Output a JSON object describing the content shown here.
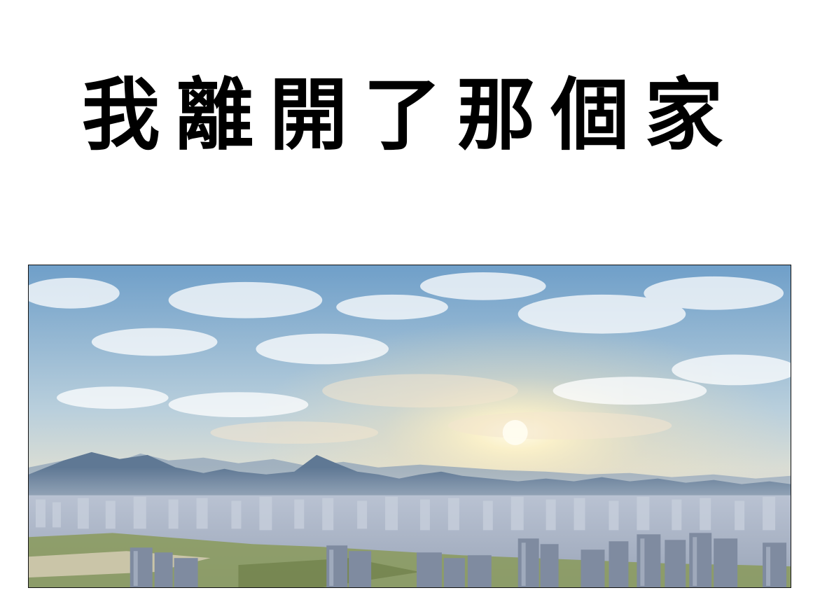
{
  "slide": {
    "title": "我離開了那個家"
  },
  "photo": {
    "scene": "sunrise-over-city-skyline-with-mountains",
    "colors": {
      "sky_top": "#6f9fc9",
      "sky_mid": "#c9d8de",
      "sun_glow": "#fff3c8",
      "mountain": "#5f7894",
      "mountain_far": "#8fa3b8",
      "city": "#a9b4c6",
      "city_dark": "#7f8ba0",
      "ground": "#8a9a5a"
    }
  }
}
